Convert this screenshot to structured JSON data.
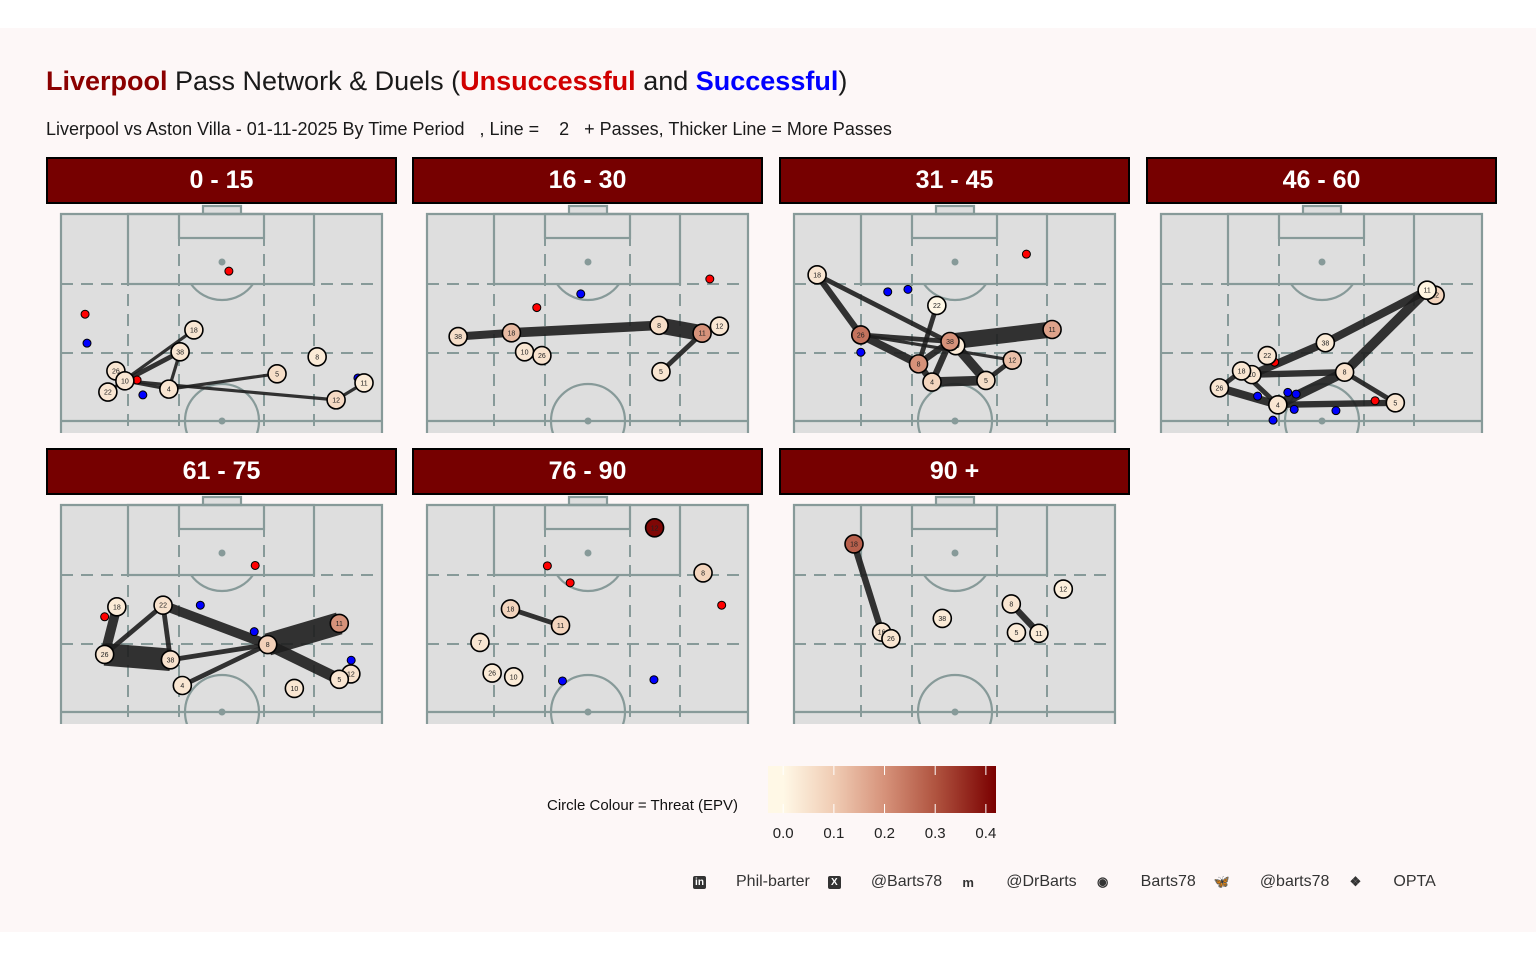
{
  "title": {
    "team": "Liverpool",
    "mid": " Pass Network & Duels (",
    "unsuccessful": "Unsuccessful",
    "and": " and ",
    "successful": "Successful",
    "end": ")"
  },
  "subtitle": "Liverpool vs Aston Villa - 01-11-2025 By Time Period   , Line =    2   + Passes, Thicker Line = More Passes",
  "colors": {
    "header_bg": "#760000",
    "unsuccessful": "#ff0000",
    "successful": "#0000ff",
    "pitch": "#dedede",
    "pitch_lines": "#879a99",
    "edge": "#1e1e1e",
    "epv_low": "#fff8e6",
    "epv_high": "#7a0000"
  },
  "legend": {
    "title": "Circle Colour = Threat (EPV)",
    "ticks": [
      "0.0",
      "0.1",
      "0.2",
      "0.3",
      "0.4"
    ],
    "range": [
      -0.03,
      0.42
    ]
  },
  "footer": [
    {
      "icon": "linkedin-icon",
      "glyph": "in",
      "label": "Phil-barter"
    },
    {
      "icon": "x-icon",
      "glyph": "X",
      "label": "@Barts78"
    },
    {
      "icon": "mastodon-icon",
      "glyph": "m",
      "label": "@DrBarts"
    },
    {
      "icon": "github-icon",
      "glyph": "◉",
      "label": "Barts78"
    },
    {
      "icon": "bluesky-icon",
      "glyph": "🦋",
      "label": "@barts78"
    },
    {
      "icon": "dropbox-icon",
      "glyph": "❖",
      "label": "OPTA"
    }
  ],
  "chart_data": {
    "type": "scatter",
    "description_units": "x = pitch width 0-100 (left to right), y = pitch length 0-100 (100 = opponent goal)",
    "min_passes": 2,
    "panels": [
      {
        "label": "0 - 15",
        "nodes": [
          {
            "n": "18",
            "x": 41.4,
            "y": 72.0,
            "epv": 0.04
          },
          {
            "n": "38",
            "x": 37.1,
            "y": 66.7,
            "epv": 0.04
          },
          {
            "n": "26",
            "x": 17.1,
            "y": 62.1,
            "epv": 0.04
          },
          {
            "n": "10",
            "x": 19.9,
            "y": 59.7,
            "epv": 0.04
          },
          {
            "n": "22",
            "x": 14.6,
            "y": 57.0,
            "epv": 0.04
          },
          {
            "n": "4",
            "x": 33.6,
            "y": 57.7,
            "epv": 0.04
          },
          {
            "n": "5",
            "x": 67.3,
            "y": 61.4,
            "epv": 0.06
          },
          {
            "n": "8",
            "x": 79.8,
            "y": 65.5,
            "epv": 0.03
          },
          {
            "n": "11",
            "x": 94.4,
            "y": 59.2,
            "epv": 0.03
          },
          {
            "n": "12",
            "x": 85.7,
            "y": 55.1,
            "epv": 0.07
          }
        ],
        "edges": [
          [
            "22",
            "18",
            2
          ],
          [
            "10",
            "38",
            3
          ],
          [
            "38",
            "4",
            2
          ],
          [
            "10",
            "4",
            2
          ],
          [
            "4",
            "5",
            2
          ],
          [
            "10",
            "12",
            2
          ],
          [
            "12",
            "11",
            2
          ]
        ],
        "duels": [
          {
            "x": 52.3,
            "y": 86.2,
            "o": "unsuccessful"
          },
          {
            "x": 7.5,
            "y": 75.8,
            "o": "unsuccessful"
          },
          {
            "x": 8.1,
            "y": 68.8,
            "o": "successful"
          },
          {
            "x": 25.5,
            "y": 56.3,
            "o": "successful"
          },
          {
            "x": 23.7,
            "y": 59.9,
            "o": "unsuccessful"
          },
          {
            "x": 92.5,
            "y": 60.4,
            "o": "successful"
          }
        ]
      },
      {
        "label": "16 - 30",
        "nodes": [
          {
            "n": "38",
            "x": 9.7,
            "y": 70.4,
            "epv": 0.06
          },
          {
            "n": "18",
            "x": 26.3,
            "y": 71.3,
            "epv": 0.13
          },
          {
            "n": "10",
            "x": 30.4,
            "y": 66.7,
            "epv": 0.04
          },
          {
            "n": "26",
            "x": 35.8,
            "y": 65.8,
            "epv": 0.05
          },
          {
            "n": "8",
            "x": 72.3,
            "y": 73.1,
            "epv": 0.06
          },
          {
            "n": "11",
            "x": 85.7,
            "y": 71.2,
            "epv": 0.2
          },
          {
            "n": "12",
            "x": 91.1,
            "y": 72.9,
            "epv": 0.04
          },
          {
            "n": "5",
            "x": 72.9,
            "y": 61.9,
            "epv": 0.04
          }
        ],
        "edges": [
          [
            "38",
            "18",
            5
          ],
          [
            "18",
            "8",
            6
          ],
          [
            "8",
            "11",
            10
          ],
          [
            "11",
            "5",
            3
          ]
        ],
        "duels": [
          {
            "x": 34.2,
            "y": 77.4,
            "o": "unsuccessful"
          },
          {
            "x": 47.9,
            "y": 80.7,
            "o": "successful"
          },
          {
            "x": 88.1,
            "y": 84.3,
            "o": "unsuccessful"
          }
        ]
      },
      {
        "label": "31 - 45",
        "nodes": [
          {
            "n": "18",
            "x": 7.2,
            "y": 85.3,
            "epv": 0.04
          },
          {
            "n": "22",
            "x": 44.5,
            "y": 77.9,
            "epv": 0.0
          },
          {
            "n": "26",
            "x": 20.8,
            "y": 70.8,
            "epv": 0.25
          },
          {
            "n": "10",
            "x": 50.4,
            "y": 68.2,
            "epv": 0.03
          },
          {
            "n": "38",
            "x": 48.6,
            "y": 69.2,
            "epv": 0.2
          },
          {
            "n": "11",
            "x": 80.4,
            "y": 72.1,
            "epv": 0.17
          },
          {
            "n": "12",
            "x": 68.0,
            "y": 64.7,
            "epv": 0.12
          },
          {
            "n": "8",
            "x": 38.8,
            "y": 63.8,
            "epv": 0.2
          },
          {
            "n": "4",
            "x": 43.0,
            "y": 59.4,
            "epv": 0.08
          },
          {
            "n": "5",
            "x": 59.8,
            "y": 59.8,
            "epv": 0.06
          }
        ],
        "edges": [
          [
            "18",
            "26",
            4
          ],
          [
            "18",
            "10",
            3
          ],
          [
            "26",
            "38",
            3
          ],
          [
            "26",
            "8",
            5
          ],
          [
            "26",
            "12",
            2
          ],
          [
            "22",
            "8",
            3
          ],
          [
            "38",
            "11",
            10
          ],
          [
            "10",
            "5",
            6
          ],
          [
            "8",
            "38",
            4
          ],
          [
            "4",
            "38",
            4
          ],
          [
            "4",
            "5",
            6
          ],
          [
            "5",
            "12",
            3
          ],
          [
            "8",
            "4",
            4
          ]
        ],
        "duels": [
          {
            "x": 72.4,
            "y": 90.3,
            "o": "unsuccessful"
          },
          {
            "x": 29.2,
            "y": 81.2,
            "o": "successful"
          },
          {
            "x": 35.5,
            "y": 81.8,
            "o": "successful"
          },
          {
            "x": 20.8,
            "y": 66.6,
            "o": "successful"
          }
        ]
      },
      {
        "label": "46 - 60",
        "nodes": [
          {
            "n": "12",
            "x": 85.4,
            "y": 80.4,
            "epv": 0.08
          },
          {
            "n": "11",
            "x": 82.9,
            "y": 81.6,
            "epv": 0.01
          },
          {
            "n": "38",
            "x": 51.2,
            "y": 68.9,
            "epv": 0.03
          },
          {
            "n": "22",
            "x": 33.1,
            "y": 65.8,
            "epv": 0.04
          },
          {
            "n": "10",
            "x": 28.3,
            "y": 61.2,
            "epv": 0.04
          },
          {
            "n": "18",
            "x": 25.1,
            "y": 62.1,
            "epv": 0.04
          },
          {
            "n": "26",
            "x": 18.2,
            "y": 58.0,
            "epv": 0.04
          },
          {
            "n": "8",
            "x": 57.2,
            "y": 61.8,
            "epv": 0.05
          },
          {
            "n": "4",
            "x": 36.4,
            "y": 53.9,
            "epv": 0.04
          },
          {
            "n": "5",
            "x": 73.0,
            "y": 54.4,
            "epv": 0.04
          }
        ],
        "edges": [
          [
            "10",
            "38",
            5
          ],
          [
            "38",
            "11",
            5
          ],
          [
            "10",
            "8",
            4
          ],
          [
            "26",
            "4",
            5
          ],
          [
            "18",
            "4",
            3
          ],
          [
            "4",
            "8",
            6
          ],
          [
            "8",
            "11",
            6
          ],
          [
            "8",
            "5",
            3
          ],
          [
            "4",
            "5",
            4
          ],
          [
            "26",
            "18",
            3
          ]
        ],
        "duels": [
          {
            "x": 35.4,
            "y": 64.2,
            "o": "unsuccessful"
          },
          {
            "x": 30.1,
            "y": 56.0,
            "o": "successful"
          },
          {
            "x": 39.5,
            "y": 56.9,
            "o": "successful"
          },
          {
            "x": 42.1,
            "y": 56.5,
            "o": "successful"
          },
          {
            "x": 41.5,
            "y": 52.8,
            "o": "successful"
          },
          {
            "x": 34.9,
            "y": 50.2,
            "o": "successful"
          },
          {
            "x": 54.5,
            "y": 52.5,
            "o": "successful"
          },
          {
            "x": 66.7,
            "y": 54.9,
            "o": "unsuccessful"
          }
        ]
      },
      {
        "label": "61 - 75",
        "nodes": [
          {
            "n": "18",
            "x": 17.4,
            "y": 75.4,
            "epv": 0.03
          },
          {
            "n": "22",
            "x": 31.8,
            "y": 75.8,
            "epv": 0.05
          },
          {
            "n": "26",
            "x": 13.6,
            "y": 63.9,
            "epv": 0.04
          },
          {
            "n": "38",
            "x": 34.1,
            "y": 62.6,
            "epv": 0.05
          },
          {
            "n": "4",
            "x": 37.8,
            "y": 56.4,
            "epv": 0.04
          },
          {
            "n": "8",
            "x": 64.4,
            "y": 66.3,
            "epv": 0.09
          },
          {
            "n": "11",
            "x": 86.7,
            "y": 71.4,
            "epv": 0.2
          },
          {
            "n": "12",
            "x": 90.3,
            "y": 59.2,
            "epv": 0.05
          },
          {
            "n": "5",
            "x": 86.7,
            "y": 57.9,
            "epv": 0.04
          },
          {
            "n": "10",
            "x": 72.7,
            "y": 55.7,
            "epv": 0.04
          }
        ],
        "edges": [
          [
            "18",
            "26",
            6
          ],
          [
            "26",
            "22",
            3
          ],
          [
            "22",
            "38",
            3
          ],
          [
            "26",
            "38",
            14
          ],
          [
            "22",
            "8",
            6
          ],
          [
            "38",
            "8",
            3
          ],
          [
            "4",
            "8",
            3
          ],
          [
            "8",
            "11",
            14
          ],
          [
            "8",
            "5",
            7
          ]
        ],
        "duels": [
          {
            "x": 60.5,
            "y": 85.4,
            "o": "unsuccessful"
          },
          {
            "x": 43.4,
            "y": 75.8,
            "o": "successful"
          },
          {
            "x": 13.6,
            "y": 73.0,
            "o": "unsuccessful"
          },
          {
            "x": 60.2,
            "y": 69.4,
            "o": "successful"
          },
          {
            "x": 90.4,
            "y": 62.5,
            "o": "successful"
          }
        ]
      },
      {
        "label": "76 - 90",
        "nodes": [
          {
            "n": "12",
            "x": 70.9,
            "y": 94.5,
            "epv": 0.41
          },
          {
            "n": "8",
            "x": 86.0,
            "y": 83.6,
            "epv": 0.08
          },
          {
            "n": "18",
            "x": 26.0,
            "y": 74.9,
            "epv": 0.08
          },
          {
            "n": "11",
            "x": 41.6,
            "y": 70.9,
            "epv": 0.08
          },
          {
            "n": "7",
            "x": 16.5,
            "y": 66.8,
            "epv": 0.04
          },
          {
            "n": "26",
            "x": 20.3,
            "y": 59.4,
            "epv": 0.03
          },
          {
            "n": "10",
            "x": 27.0,
            "y": 58.5,
            "epv": 0.03
          }
        ],
        "edges": [
          [
            "18",
            "11",
            3
          ]
        ],
        "duels": [
          {
            "x": 37.5,
            "y": 85.3,
            "o": "unsuccessful"
          },
          {
            "x": 44.6,
            "y": 81.2,
            "o": "unsuccessful"
          },
          {
            "x": 91.8,
            "y": 75.8,
            "o": "unsuccessful"
          },
          {
            "x": 42.2,
            "y": 57.5,
            "o": "successful"
          },
          {
            "x": 70.7,
            "y": 57.8,
            "o": "successful"
          }
        ]
      },
      {
        "label": "90 +",
        "nodes": [
          {
            "n": "18",
            "x": 18.7,
            "y": 90.6,
            "epv": 0.28
          },
          {
            "n": "16",
            "x": 27.3,
            "y": 69.3,
            "epv": 0.04
          },
          {
            "n": "26",
            "x": 30.2,
            "y": 67.7,
            "epv": 0.04
          },
          {
            "n": "38",
            "x": 46.2,
            "y": 72.6,
            "epv": 0.03
          },
          {
            "n": "8",
            "x": 67.7,
            "y": 76.1,
            "epv": 0.04
          },
          {
            "n": "12",
            "x": 83.9,
            "y": 79.7,
            "epv": 0.02
          },
          {
            "n": "5",
            "x": 69.3,
            "y": 69.2,
            "epv": 0.03
          },
          {
            "n": "11",
            "x": 76.3,
            "y": 69.0,
            "epv": 0.03
          }
        ],
        "edges": [
          [
            "18",
            "16",
            4
          ],
          [
            "8",
            "11",
            4
          ]
        ],
        "duels": []
      }
    ]
  }
}
